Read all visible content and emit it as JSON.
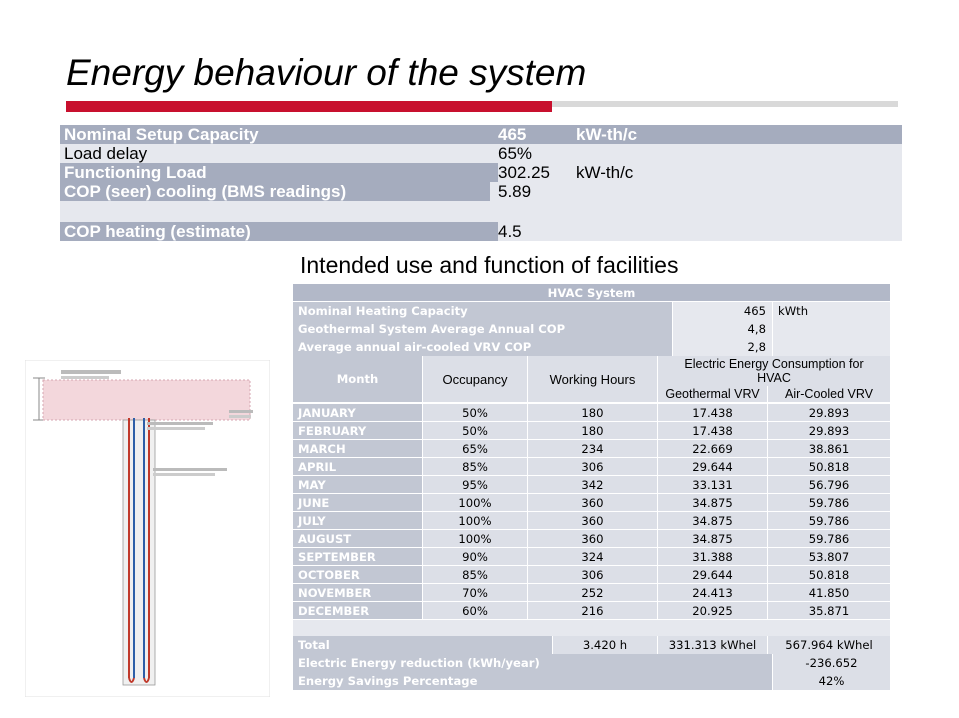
{
  "slide": {
    "title": "Energy behaviour of the system",
    "subtitle": "Intended use and function of facilities"
  },
  "summary": [
    {
      "label": "Nominal Setup Capacity",
      "value": "465",
      "unit": "kW-th/c",
      "style": "dark"
    },
    {
      "label": "Load delay",
      "value": "65%",
      "unit": "",
      "style": "light"
    },
    {
      "label": "Functioning Load",
      "value": "302.25",
      "unit": "kW-th/c",
      "style": "dark"
    },
    {
      "label": "COP (seer) cooling (BMS readings)",
      "value": "5.89",
      "unit": "",
      "style": "light"
    },
    {
      "label": "COP heating (estimate)",
      "value": "4.5",
      "unit": "",
      "style": "dark"
    }
  ],
  "hvac": {
    "title": "HVAC System",
    "specs": [
      {
        "label": "Nominal Heating Capacity",
        "value": "465",
        "unit": "kWth"
      },
      {
        "label": "Geothermal System Average Annual COP",
        "value": "4,8",
        "unit": ""
      },
      {
        "label": "Average annual air-cooled VRV COP",
        "value": "2,8",
        "unit": ""
      }
    ],
    "headers": {
      "month": "Month",
      "occupancy": "Occupancy",
      "hours": "Working Hours",
      "consumption": "Electric Energy Consumption for HVAC",
      "geo": "Geothermal VRV",
      "air": "Air-Cooled VRV"
    },
    "rows": [
      {
        "month": "JANUARY",
        "occ": "50%",
        "hours": "180",
        "geo": "17.438",
        "air": "29.893"
      },
      {
        "month": "FEBRUARY",
        "occ": "50%",
        "hours": "180",
        "geo": "17.438",
        "air": "29.893"
      },
      {
        "month": "MARCH",
        "occ": "65%",
        "hours": "234",
        "geo": "22.669",
        "air": "38.861"
      },
      {
        "month": "APRIL",
        "occ": "85%",
        "hours": "306",
        "geo": "29.644",
        "air": "50.818"
      },
      {
        "month": "MAY",
        "occ": "95%",
        "hours": "342",
        "geo": "33.131",
        "air": "56.796"
      },
      {
        "month": "JUNE",
        "occ": "100%",
        "hours": "360",
        "geo": "34.875",
        "air": "59.786"
      },
      {
        "month": "JULY",
        "occ": "100%",
        "hours": "360",
        "geo": "34.875",
        "air": "59.786"
      },
      {
        "month": "AUGUST",
        "occ": "100%",
        "hours": "360",
        "geo": "34.875",
        "air": "59.786"
      },
      {
        "month": "SEPTEMBER",
        "occ": "90%",
        "hours": "324",
        "geo": "31.388",
        "air": "53.807"
      },
      {
        "month": "OCTOBER",
        "occ": "85%",
        "hours": "306",
        "geo": "29.644",
        "air": "50.818"
      },
      {
        "month": "NOVEMBER",
        "occ": "70%",
        "hours": "252",
        "geo": "24.413",
        "air": "41.850"
      },
      {
        "month": "DECEMBER",
        "occ": "60%",
        "hours": "216",
        "geo": "20.925",
        "air": "35.871"
      }
    ],
    "total": {
      "label": "Total",
      "hours": "3.420 h",
      "geo": "331.313 kWhel",
      "air": "567.964 kWhel"
    },
    "reduction": {
      "label": "Electric Energy reduction (kWh/year)",
      "value": "-236.652"
    },
    "savings": {
      "label": "Energy Savings Percentage",
      "value": "42%"
    }
  },
  "colors": {
    "accent_red": "#c8102e",
    "table_dark": "#a5acbe",
    "table_light": "#e6e8ee",
    "hvac_header": "#b2b8c8",
    "hvac_band": "#c2c7d3",
    "hvac_stripe": "#dcdfe7"
  }
}
